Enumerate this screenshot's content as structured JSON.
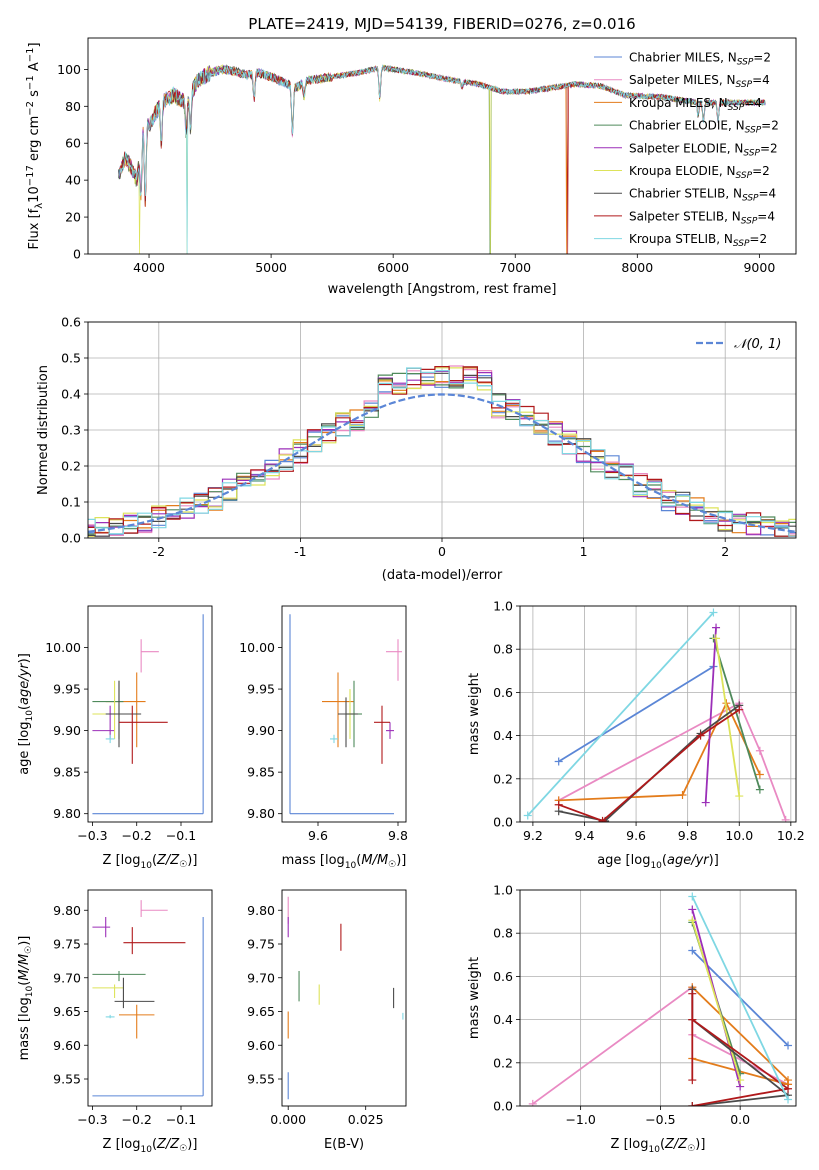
{
  "title": "PLATE=2419, MJD=54139, FIBERID=0276, z=0.016",
  "series": [
    {
      "name": "Chabrier MILES, N",
      "sub": "SSP",
      "tail": "=2",
      "color": "#5b86d6"
    },
    {
      "name": "Salpeter MILES, N",
      "sub": "SSP",
      "tail": "=4",
      "color": "#e98ac3"
    },
    {
      "name": "Kroupa MILES, N",
      "sub": "SSP",
      "tail": "=4",
      "color": "#e37c1b"
    },
    {
      "name": "Chabrier ELODIE, N",
      "sub": "SSP",
      "tail": "=2",
      "color": "#4f8a5b"
    },
    {
      "name": "Salpeter ELODIE, N",
      "sub": "SSP",
      "tail": "=2",
      "color": "#9b2fb8"
    },
    {
      "name": "Kroupa ELODIE, N",
      "sub": "SSP",
      "tail": "=2",
      "color": "#dde35a"
    },
    {
      "name": "Chabrier STELIB, N",
      "sub": "SSP",
      "tail": "=4",
      "color": "#4a4a4a"
    },
    {
      "name": "Salpeter STELIB, N",
      "sub": "SSP",
      "tail": "=4",
      "color": "#b0191b"
    },
    {
      "name": "Kroupa STELIB, N",
      "sub": "SSP",
      "tail": "=2",
      "color": "#7fd7e3"
    }
  ],
  "chart_data": [
    {
      "type": "line",
      "id": "spectrum",
      "xlabel": "wavelength [Angstrom, rest frame]",
      "ylabel": "Flux [f_λ 10^-17 erg cm^-2 s^-1 A^-1]",
      "xlim": [
        3500,
        9300
      ],
      "ylim": [
        0,
        117
      ],
      "xticks": [
        4000,
        5000,
        6000,
        7000,
        8000,
        9000
      ],
      "yticks": [
        0,
        20,
        40,
        60,
        80,
        100
      ],
      "x_range": [
        3750,
        9050
      ],
      "envelope": [
        [
          3750,
          42
        ],
        [
          3800,
          52
        ],
        [
          3850,
          48
        ],
        [
          3900,
          40
        ],
        [
          3950,
          68
        ],
        [
          4000,
          70
        ],
        [
          4050,
          76
        ],
        [
          4100,
          82
        ],
        [
          4200,
          86
        ],
        [
          4300,
          82
        ],
        [
          4400,
          94
        ],
        [
          4500,
          98
        ],
        [
          4600,
          100
        ],
        [
          4700,
          99
        ],
        [
          4800,
          97
        ],
        [
          4900,
          98
        ],
        [
          5000,
          96
        ],
        [
          5100,
          93
        ],
        [
          5200,
          90
        ],
        [
          5300,
          94
        ],
        [
          5500,
          96
        ],
        [
          5700,
          98
        ],
        [
          5900,
          101
        ],
        [
          6000,
          100
        ],
        [
          6200,
          98
        ],
        [
          6500,
          94
        ],
        [
          6700,
          92
        ],
        [
          6900,
          88
        ],
        [
          7100,
          88
        ],
        [
          7300,
          90
        ],
        [
          7500,
          92
        ],
        [
          7700,
          91
        ],
        [
          7900,
          86
        ],
        [
          8200,
          85
        ],
        [
          8500,
          82
        ],
        [
          8700,
          82
        ],
        [
          9050,
          82
        ]
      ],
      "absorption": [
        [
          3934,
          30
        ],
        [
          3969,
          28
        ],
        [
          4101,
          60
        ],
        [
          4304,
          66
        ],
        [
          4340,
          68
        ],
        [
          4861,
          84
        ],
        [
          5175,
          65
        ],
        [
          5270,
          85
        ],
        [
          5890,
          84
        ],
        [
          6563,
          90
        ],
        [
          8498,
          75
        ],
        [
          8542,
          72
        ],
        [
          8662,
          72
        ]
      ],
      "glitches": [
        {
          "series": 5,
          "at": 3920,
          "to": 0
        },
        {
          "series": 8,
          "at": 4310,
          "to": 0
        },
        {
          "series": 5,
          "at": 4310,
          "to": 0
        },
        {
          "series": 3,
          "at": 6795,
          "to": 0
        },
        {
          "series": 5,
          "at": 6795,
          "to": 0
        },
        {
          "series": 2,
          "at": 7420,
          "to": 0
        },
        {
          "series": 7,
          "at": 7430,
          "to": 0
        }
      ]
    },
    {
      "type": "step",
      "id": "residuals",
      "xlabel": "(data-model)/error",
      "ylabel": "Normed distribution",
      "xlim": [
        -2.5,
        2.5
      ],
      "ylim": [
        0,
        0.6
      ],
      "xticks": [
        -2,
        -1,
        0,
        1,
        2
      ],
      "yticks": [
        0.0,
        0.1,
        0.2,
        0.3,
        0.4,
        0.5,
        0.6
      ],
      "bin_width": 0.1,
      "normal_label": "𝒩(0, 1)",
      "normal_color": "#5b86d6"
    },
    {
      "type": "errorbar",
      "id": "age_vs_Z",
      "xlabel": "Z [log10(Z/Z☉)]",
      "ylabel": "age [log10(age/yr)]",
      "xlim": [
        -0.31,
        -0.03
      ],
      "ylim": [
        9.79,
        10.05
      ],
      "xticks": [
        -0.3,
        -0.2,
        -0.1
      ],
      "yticks": [
        9.8,
        9.85,
        9.9,
        9.95,
        10.0
      ],
      "points": [
        {
          "s": 0,
          "x": -0.05,
          "y": 9.8,
          "x0": -0.3,
          "x1": -0.05,
          "y0": 9.8,
          "y1": 10.04
        },
        {
          "s": 1,
          "x": -0.19,
          "y": 9.995,
          "x0": -0.19,
          "x1": -0.15,
          "y0": 9.97,
          "y1": 10.01
        },
        {
          "s": 2,
          "x": -0.2,
          "y": 9.935,
          "x0": -0.27,
          "x1": -0.18,
          "y0": 9.88,
          "y1": 9.97
        },
        {
          "s": 3,
          "x": -0.24,
          "y": 9.935,
          "x0": -0.3,
          "x1": -0.23,
          "y0": 9.89,
          "y1": 9.96
        },
        {
          "s": 4,
          "x": -0.26,
          "y": 9.9,
          "x0": -0.3,
          "x1": -0.25,
          "y0": 9.89,
          "y1": 9.93
        },
        {
          "s": 5,
          "x": -0.25,
          "y": 9.92,
          "x0": -0.3,
          "x1": -0.23,
          "y0": 9.89,
          "y1": 9.96
        },
        {
          "s": 6,
          "x": -0.24,
          "y": 9.92,
          "x0": -0.27,
          "x1": -0.19,
          "y0": 9.88,
          "y1": 9.96
        },
        {
          "s": 7,
          "x": -0.21,
          "y": 9.91,
          "x0": -0.24,
          "x1": -0.13,
          "y0": 9.86,
          "y1": 9.93
        },
        {
          "s": 8,
          "x": -0.26,
          "y": 9.89,
          "x0": -0.27,
          "x1": -0.25,
          "y0": 9.885,
          "y1": 9.895
        }
      ]
    },
    {
      "type": "errorbar",
      "id": "age_vs_mass",
      "xlabel": "mass [log10(M/M☉)]",
      "ylabel": "",
      "xlim": [
        9.51,
        9.82
      ],
      "ylim": [
        9.79,
        10.05
      ],
      "xticks": [
        9.6,
        9.8
      ],
      "yticks": [
        9.8,
        9.85,
        9.9,
        9.95,
        10.0
      ],
      "points": [
        {
          "s": 0,
          "x": 9.53,
          "y": 9.8,
          "x0": 9.53,
          "x1": 9.79,
          "y0": 9.8,
          "y1": 10.04
        },
        {
          "s": 1,
          "x": 9.8,
          "y": 9.995,
          "x0": 9.77,
          "x1": 9.81,
          "y0": 9.96,
          "y1": 10.01
        },
        {
          "s": 2,
          "x": 9.65,
          "y": 9.935,
          "x0": 9.61,
          "x1": 9.69,
          "y0": 9.88,
          "y1": 9.97
        },
        {
          "s": 3,
          "x": 9.69,
          "y": 9.92,
          "x0": 9.67,
          "x1": 9.71,
          "y0": 9.88,
          "y1": 9.96
        },
        {
          "s": 4,
          "x": 9.78,
          "y": 9.9,
          "x0": 9.77,
          "x1": 9.79,
          "y0": 9.89,
          "y1": 9.91
        },
        {
          "s": 5,
          "x": 9.68,
          "y": 9.92,
          "x0": 9.67,
          "x1": 9.69,
          "y0": 9.89,
          "y1": 9.95
        },
        {
          "s": 6,
          "x": 9.67,
          "y": 9.92,
          "x0": 9.65,
          "x1": 9.7,
          "y0": 9.88,
          "y1": 9.94
        },
        {
          "s": 7,
          "x": 9.76,
          "y": 9.91,
          "x0": 9.74,
          "x1": 9.78,
          "y0": 9.86,
          "y1": 9.93
        },
        {
          "s": 8,
          "x": 9.64,
          "y": 9.89,
          "x0": 9.63,
          "x1": 9.65,
          "y0": 9.885,
          "y1": 9.895
        }
      ]
    },
    {
      "type": "line",
      "id": "weight_vs_age",
      "xlabel": "age [log10(age/yr)]",
      "ylabel": "mass weight",
      "xlim": [
        9.15,
        10.22
      ],
      "ylim": [
        0,
        1.0
      ],
      "xticks": [
        9.2,
        9.4,
        9.6,
        9.8,
        10.0,
        10.2
      ],
      "yticks": [
        0.0,
        0.2,
        0.4,
        0.6,
        0.8,
        1.0
      ],
      "lines": [
        {
          "s": 0,
          "pts": [
            [
              9.3,
              0.28
            ],
            [
              9.9,
              0.72
            ]
          ]
        },
        {
          "s": 1,
          "pts": [
            [
              9.3,
              0.1
            ],
            [
              10.0,
              0.55
            ],
            [
              10.08,
              0.33
            ],
            [
              10.18,
              0.01
            ]
          ]
        },
        {
          "s": 2,
          "pts": [
            [
              9.3,
              0.1
            ],
            [
              9.78,
              0.125
            ],
            [
              9.95,
              0.55
            ],
            [
              10.08,
              0.22
            ]
          ]
        },
        {
          "s": 3,
          "pts": [
            [
              9.9,
              0.85
            ],
            [
              10.08,
              0.15
            ]
          ]
        },
        {
          "s": 4,
          "pts": [
            [
              9.91,
              0.9
            ],
            [
              9.87,
              0.09
            ]
          ]
        },
        {
          "s": 5,
          "pts": [
            [
              9.91,
              0.85
            ],
            [
              10.0,
              0.12
            ]
          ]
        },
        {
          "s": 6,
          "pts": [
            [
              9.3,
              0.05
            ],
            [
              9.48,
              0.005
            ],
            [
              9.85,
              0.41
            ],
            [
              10.0,
              0.54
            ]
          ]
        },
        {
          "s": 7,
          "pts": [
            [
              9.3,
              0.08
            ],
            [
              9.47,
              0.005
            ],
            [
              9.85,
              0.4
            ],
            [
              10.0,
              0.52
            ]
          ]
        },
        {
          "s": 8,
          "pts": [
            [
              9.18,
              0.03
            ],
            [
              9.9,
              0.97
            ]
          ]
        }
      ]
    },
    {
      "type": "errorbar",
      "id": "mass_vs_Z",
      "xlabel": "Z [log10(Z/Z☉)]",
      "ylabel": "mass [log10(M/M☉)]",
      "xlim": [
        -0.31,
        -0.03
      ],
      "ylim": [
        9.51,
        9.83
      ],
      "xticks": [
        -0.3,
        -0.2,
        -0.1
      ],
      "yticks": [
        9.55,
        9.6,
        9.65,
        9.7,
        9.75,
        9.8
      ],
      "points": [
        {
          "s": 0,
          "x": -0.05,
          "y": 9.525,
          "x0": -0.3,
          "x1": -0.05,
          "y0": 9.525,
          "y1": 9.79
        },
        {
          "s": 1,
          "x": -0.19,
          "y": 9.8,
          "x0": -0.19,
          "x1": -0.13,
          "y0": 9.79,
          "y1": 9.815
        },
        {
          "s": 2,
          "x": -0.2,
          "y": 9.645,
          "x0": -0.24,
          "x1": -0.16,
          "y0": 9.61,
          "y1": 9.66
        },
        {
          "s": 3,
          "x": -0.24,
          "y": 9.705,
          "x0": -0.3,
          "x1": -0.18,
          "y0": 9.695,
          "y1": 9.71
        },
        {
          "s": 4,
          "x": -0.27,
          "y": 9.775,
          "x0": -0.3,
          "x1": -0.26,
          "y0": 9.76,
          "y1": 9.79
        },
        {
          "s": 5,
          "x": -0.25,
          "y": 9.685,
          "x0": -0.3,
          "x1": -0.23,
          "y0": 9.67,
          "y1": 9.69
        },
        {
          "s": 6,
          "x": -0.23,
          "y": 9.665,
          "x0": -0.25,
          "x1": -0.16,
          "y0": 9.655,
          "y1": 9.7
        },
        {
          "s": 7,
          "x": -0.21,
          "y": 9.752,
          "x0": -0.23,
          "x1": -0.09,
          "y0": 9.735,
          "y1": 9.775
        },
        {
          "s": 8,
          "x": -0.26,
          "y": 9.642,
          "x0": -0.27,
          "x1": -0.25,
          "y0": 9.64,
          "y1": 9.645
        }
      ]
    },
    {
      "type": "errorbar",
      "id": "mass_vs_ebv",
      "xlabel": "E(B-V)",
      "ylabel": "",
      "xlim": [
        -0.002,
        0.038
      ],
      "ylim": [
        9.51,
        9.83
      ],
      "xticks": [
        0.0,
        0.025
      ],
      "yticks": [
        9.55,
        9.6,
        9.65,
        9.7,
        9.75,
        9.8
      ],
      "tick_fmt": [
        "0.000",
        "0.025"
      ],
      "points": [
        {
          "s": 0,
          "x": 0.0,
          "y": 9.54,
          "x0": 0.0,
          "x1": 0.0,
          "y0": 9.52,
          "y1": 9.56
        },
        {
          "s": 1,
          "x": 0.0,
          "y": 9.8,
          "x0": 0.0,
          "x1": 0.0,
          "y0": 9.78,
          "y1": 9.82
        },
        {
          "s": 2,
          "x": 0.0,
          "y": 9.63,
          "x0": 0.0,
          "x1": 0.0,
          "y0": 9.61,
          "y1": 9.65
        },
        {
          "s": 3,
          "x": 0.0035,
          "y": 9.69,
          "x0": 0.0035,
          "x1": 0.0035,
          "y0": 9.665,
          "y1": 9.71
        },
        {
          "s": 4,
          "x": 0.0,
          "y": 9.78,
          "x0": 0.0,
          "x1": 0.0,
          "y0": 9.76,
          "y1": 9.79
        },
        {
          "s": 5,
          "x": 0.01,
          "y": 9.675,
          "x0": 0.01,
          "x1": 0.01,
          "y0": 9.66,
          "y1": 9.69
        },
        {
          "s": 6,
          "x": 0.034,
          "y": 9.67,
          "x0": 0.034,
          "x1": 0.034,
          "y0": 9.655,
          "y1": 9.685
        },
        {
          "s": 7,
          "x": 0.017,
          "y": 9.76,
          "x0": 0.017,
          "x1": 0.017,
          "y0": 9.74,
          "y1": 9.78
        },
        {
          "s": 8,
          "x": 0.037,
          "y": 9.643,
          "x0": 0.037,
          "x1": 0.037,
          "y0": 9.638,
          "y1": 9.648
        }
      ]
    },
    {
      "type": "line",
      "id": "weight_vs_Z",
      "xlabel": "Z [log10(Z/Z☉)]",
      "ylabel": "mass weight",
      "xlim": [
        -1.38,
        0.35
      ],
      "ylim": [
        0,
        1.0
      ],
      "xticks": [
        -1.0,
        -0.5,
        0.0
      ],
      "yticks": [
        0.0,
        0.2,
        0.4,
        0.6,
        0.8,
        1.0
      ],
      "lines": [
        {
          "s": 0,
          "pts": [
            [
              -0.3,
              0.72
            ],
            [
              0.3,
              0.28
            ]
          ]
        },
        {
          "s": 1,
          "pts": [
            [
              -1.3,
              0.01
            ],
            [
              -0.3,
              0.55
            ],
            [
              -0.3,
              0.33
            ],
            [
              0.3,
              0.1
            ]
          ]
        },
        {
          "s": 2,
          "pts": [
            [
              -0.3,
              0.22
            ],
            [
              0.3,
              0.1
            ],
            [
              0.3,
              0.12
            ],
            [
              -0.3,
              0.55
            ]
          ]
        },
        {
          "s": 3,
          "pts": [
            [
              -0.3,
              0.85
            ],
            [
              0.0,
              0.15
            ]
          ]
        },
        {
          "s": 4,
          "pts": [
            [
              -0.3,
              0.91
            ],
            [
              0.0,
              0.09
            ]
          ]
        },
        {
          "s": 5,
          "pts": [
            [
              -0.3,
              0.86
            ],
            [
              0.0,
              0.12
            ]
          ]
        },
        {
          "s": 6,
          "pts": [
            [
              -0.3,
              0.0
            ],
            [
              0.3,
              0.05
            ],
            [
              -0.3,
              0.4
            ],
            [
              -0.3,
              0.54
            ]
          ]
        },
        {
          "s": 7,
          "pts": [
            [
              -0.3,
              0.0
            ],
            [
              0.3,
              0.08
            ],
            [
              -0.3,
              0.4
            ],
            [
              -0.3,
              0.52
            ],
            [
              -0.3,
              0.12
            ]
          ]
        },
        {
          "s": 8,
          "pts": [
            [
              -0.3,
              0.97
            ],
            [
              0.3,
              0.03
            ]
          ]
        }
      ]
    }
  ]
}
